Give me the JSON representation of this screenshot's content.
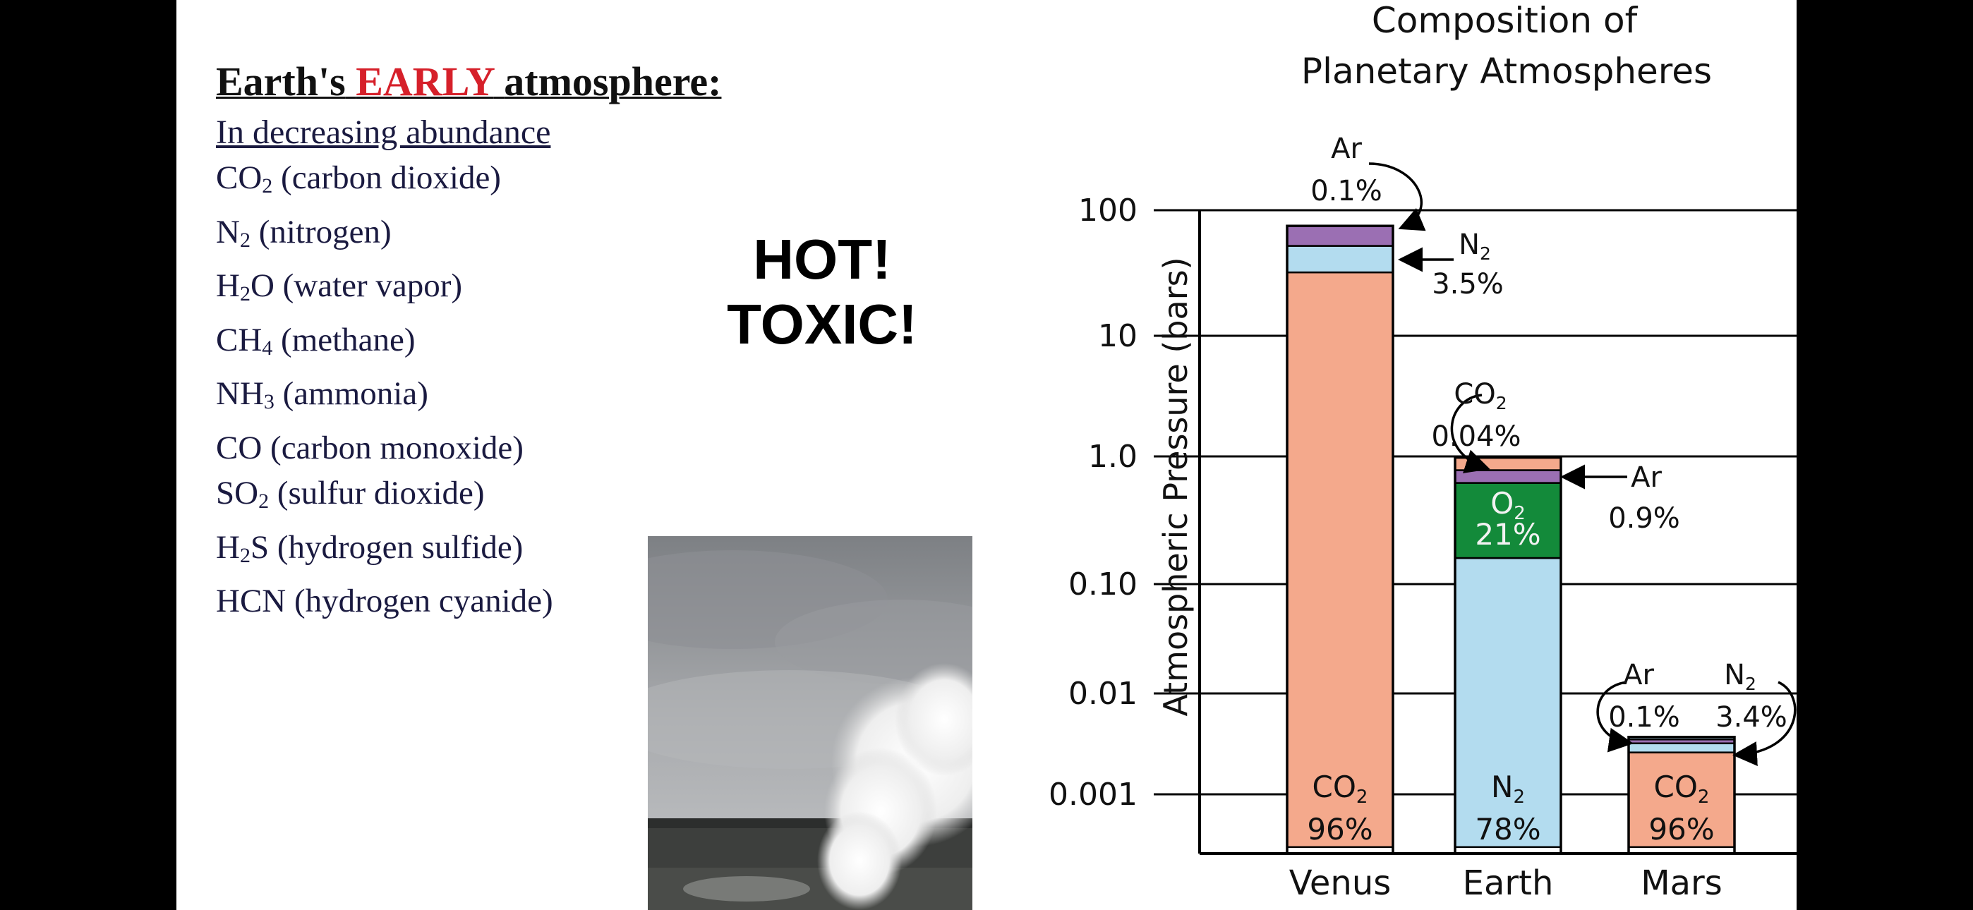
{
  "left_panel": {
    "title_prefix": "Earth's",
    "title_emphasis": "EARLY",
    "title_suffix": "atmosphere:",
    "subtitle": "In decreasing abundance",
    "gases": [
      {
        "pre": "CO",
        "sub": "2",
        "post": " (carbon dioxide)"
      },
      {
        "pre": "N",
        "sub": "2",
        "post": " (nitrogen)"
      },
      {
        "pre": "H",
        "sub": "2",
        "post": "O (water vapor)"
      },
      {
        "pre": "CH",
        "sub": "4",
        "post": " (methane)"
      },
      {
        "pre": "NH",
        "sub": "3",
        "post": " (ammonia)"
      },
      {
        "pre": "CO (carbon monoxide)",
        "sub": "",
        "post": ""
      },
      {
        "pre": "SO",
        "sub": "2",
        "post": " (sulfur dioxide)"
      },
      {
        "pre": "H",
        "sub": "2",
        "post": "S (hydrogen sulfide)"
      },
      {
        "pre": "HCN (hydrogen cyanide)",
        "sub": "",
        "post": ""
      }
    ],
    "callout_line1": "HOT!",
    "callout_line2": "TOXIC!"
  },
  "chart_data": {
    "type": "bar",
    "stacked": true,
    "y_scale": "log",
    "title": "Composition of Planetary Atmospheres",
    "title_lines": [
      "Composition of",
      "Planetary Atmospheres"
    ],
    "ylabel": "Atmospheric Pressure (bars)",
    "xlabel": "",
    "yticks": [
      {
        "value": 100,
        "label": "100"
      },
      {
        "value": 10,
        "label": "10"
      },
      {
        "value": 1,
        "label": "1.0"
      },
      {
        "value": 0.1,
        "label": "0.10"
      },
      {
        "value": 0.01,
        "label": "0.01"
      },
      {
        "value": 0.001,
        "label": "0.001"
      }
    ],
    "grid": true,
    "categories": [
      "Venus",
      "Earth",
      "Mars"
    ],
    "segments": [
      {
        "planet": "Venus",
        "gas": "CO2",
        "from": 0.0003,
        "to": 32,
        "color": "#f4a98c"
      },
      {
        "planet": "Venus",
        "gas": "N2",
        "from": 32,
        "to": 52,
        "color": "#b3dcef"
      },
      {
        "planet": "Venus",
        "gas": "Ar",
        "from": 52,
        "to": 75,
        "color": "#9b6fb3"
      },
      {
        "planet": "Earth",
        "gas": "N2",
        "from": 0.0003,
        "to": 0.16,
        "color": "#b3dcef"
      },
      {
        "planet": "Earth",
        "gas": "O2",
        "from": 0.16,
        "to": 0.62,
        "color": "#138a3a"
      },
      {
        "planet": "Earth",
        "gas": "Ar",
        "from": 0.62,
        "to": 0.78,
        "color": "#9b6fb3"
      },
      {
        "planet": "Earth",
        "gas": "CO2",
        "from": 0.78,
        "to": 0.98,
        "color": "#f4a98c"
      },
      {
        "planet": "Mars",
        "gas": "CO2",
        "from": 0.0003,
        "to": 0.0026,
        "color": "#f4a98c"
      },
      {
        "planet": "Mars",
        "gas": "N2",
        "from": 0.0026,
        "to": 0.0032,
        "color": "#b3dcef"
      },
      {
        "planet": "Mars",
        "gas": "Ar",
        "from": 0.0032,
        "to": 0.0035,
        "color": "#9b6fb3"
      },
      {
        "planet": "Mars",
        "gas": "top",
        "from": 0.0035,
        "to": 0.0037,
        "color": "#b3dcef"
      }
    ],
    "bar_labels": [
      {
        "planet": "Venus",
        "gas": "CO",
        "sub": "2",
        "percent": "96%"
      },
      {
        "planet": "Earth",
        "gas": "N",
        "sub": "2",
        "percent": "78%"
      },
      {
        "planet": "Earth",
        "gas": "O",
        "sub": "2",
        "percent": "21%"
      },
      {
        "planet": "Mars",
        "gas": "CO",
        "sub": "2",
        "percent": "96%"
      }
    ],
    "annotations": [
      {
        "planet": "Venus",
        "gas": "Ar",
        "sub": "",
        "percent": "0.1%"
      },
      {
        "planet": "Venus",
        "gas": "N",
        "sub": "2",
        "percent": "3.5%"
      },
      {
        "planet": "Earth",
        "gas": "CO",
        "sub": "2",
        "percent": "0.04%"
      },
      {
        "planet": "Earth",
        "gas": "Ar",
        "sub": "",
        "percent": "0.9%"
      },
      {
        "planet": "Mars",
        "gas": "Ar",
        "sub": "",
        "percent": "0.1%"
      },
      {
        "planet": "Mars",
        "gas": "N",
        "sub": "2",
        "percent": "3.4%"
      }
    ]
  }
}
